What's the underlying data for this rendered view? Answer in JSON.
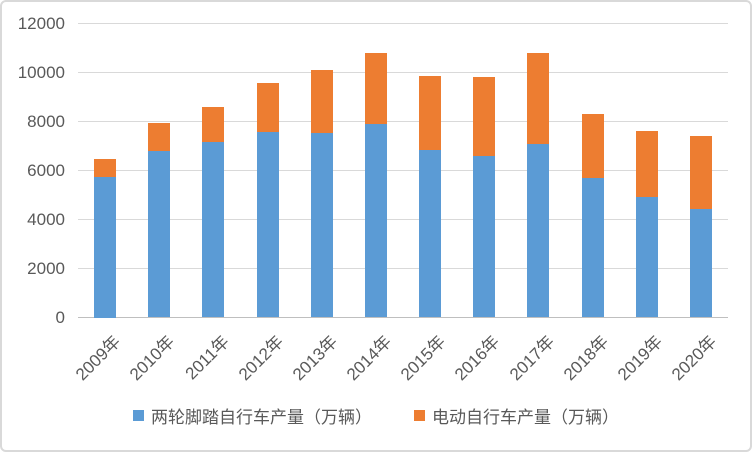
{
  "chart_data": {
    "type": "bar",
    "stacked": true,
    "title": "",
    "xlabel": "",
    "ylabel": "",
    "categories": [
      "2009年",
      "2010年",
      "2011年",
      "2012年",
      "2013年",
      "2014年",
      "2015年",
      "2016年",
      "2017年",
      "2018年",
      "2019年",
      "2020年"
    ],
    "series": [
      {
        "name": "两轮脚踏自行车产量（万辆）",
        "color": "#5B9BD5",
        "values": [
          5750,
          6800,
          7150,
          7590,
          7550,
          7900,
          6850,
          6600,
          7100,
          5710,
          4910,
          4440
        ]
      },
      {
        "name": "电动自行车产量（万辆）",
        "color": "#ED7D31",
        "values": [
          700,
          1150,
          1450,
          2000,
          2550,
          2900,
          3000,
          3200,
          3700,
          2590,
          2710,
          2960
        ]
      }
    ],
    "totals": [
      6450,
      7950,
      8600,
      9590,
      10100,
      10800,
      9850,
      9800,
      10800,
      8300,
      7620,
      7400
    ],
    "ylim": [
      0,
      12000
    ],
    "yticks": [
      0,
      2000,
      4000,
      6000,
      8000,
      10000,
      12000
    ],
    "grid": true,
    "legend_position": "bottom",
    "x_label_rotation_deg": 45,
    "axis_text_color": "#595959",
    "gridline_color": "#D9D9D9",
    "axis_line_color": "#BFBFBF",
    "frame_border_color": "#D9D9D9"
  }
}
